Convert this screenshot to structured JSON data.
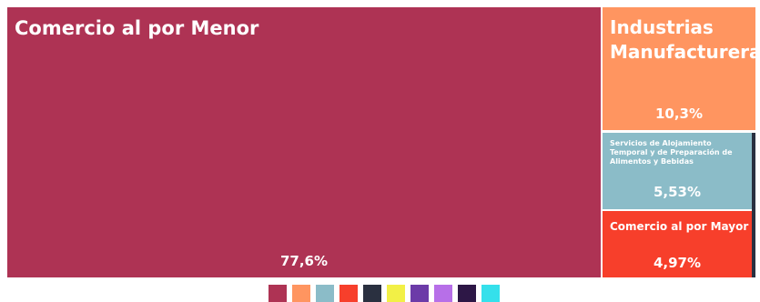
{
  "chart_data": {
    "type": "treemap",
    "title": "",
    "items": [
      {
        "name": "Comercio al por Menor",
        "value": 77.6,
        "label": "77,6%",
        "color": "#AE3354"
      },
      {
        "name": "Industrias Manufactureras",
        "value": 10.3,
        "label": "10,3%",
        "color": "#FF9560"
      },
      {
        "name": "Servicios de Alojamiento Temporal y de Preparación de Alimentos y Bebidas",
        "value": 5.53,
        "label": "5,53%",
        "color": "#8BBCC8"
      },
      {
        "name": "Comercio al por Mayor",
        "value": 4.97,
        "label": "4,97%",
        "color": "#F73F2B"
      },
      {
        "name": "",
        "value": 1.6,
        "label": "",
        "color": "#2A3040"
      }
    ],
    "legend": {
      "position": "bottom",
      "colors": [
        "#AE3354",
        "#FF9560",
        "#8BBCC8",
        "#F73F2B",
        "#2A3040",
        "#F2F046",
        "#6C3BA8",
        "#B76FE8",
        "#2D1746",
        "#35E0EB"
      ]
    }
  }
}
